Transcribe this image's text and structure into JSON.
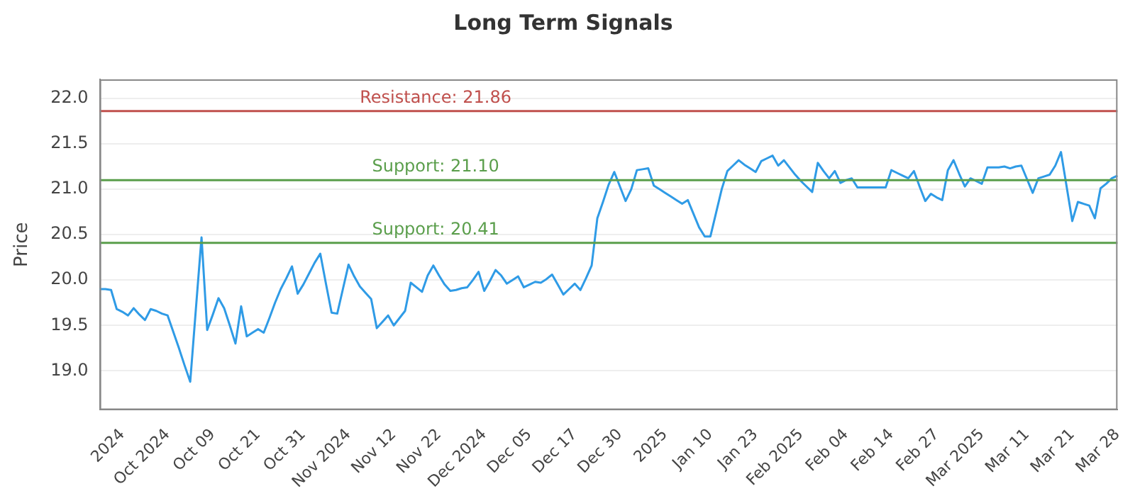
{
  "chart_data": {
    "type": "line",
    "title": "Long Term Signals",
    "ylabel": "Price",
    "categories": [
      null,
      null,
      null,
      null,
      "2024",
      null,
      null,
      null,
      null,
      null,
      null,
      null,
      "Oct 2024",
      null,
      null,
      null,
      null,
      null,
      null,
      null,
      "Oct 09",
      null,
      null,
      null,
      null,
      null,
      null,
      null,
      "Oct 21",
      null,
      null,
      null,
      null,
      null,
      null,
      null,
      "Oct 31",
      null,
      null,
      null,
      null,
      null,
      null,
      null,
      "Nov 2024",
      null,
      null,
      null,
      null,
      null,
      null,
      null,
      "Nov 12",
      null,
      null,
      null,
      null,
      null,
      null,
      null,
      "Nov 22",
      null,
      null,
      null,
      null,
      null,
      null,
      null,
      "Dec 2024",
      null,
      null,
      null,
      null,
      null,
      null,
      null,
      "Dec 05",
      null,
      null,
      null,
      null,
      null,
      null,
      null,
      "Dec 17",
      null,
      null,
      null,
      null,
      null,
      null,
      null,
      "Dec 30",
      null,
      null,
      null,
      null,
      null,
      null,
      null,
      "2025",
      null,
      null,
      null,
      null,
      null,
      null,
      null,
      "Jan 10",
      null,
      null,
      null,
      null,
      null,
      null,
      null,
      "Jan 23",
      null,
      null,
      null,
      null,
      null,
      null,
      null,
      "Feb 2025",
      null,
      null,
      null,
      null,
      null,
      null,
      null,
      "Feb 04",
      null,
      null,
      null,
      null,
      null,
      null,
      null,
      "Feb 14",
      null,
      null,
      null,
      null,
      null,
      null,
      null,
      "Feb 27",
      null,
      null,
      null,
      null,
      null,
      null,
      null,
      "Mar 2025",
      null,
      null,
      null,
      null,
      null,
      null,
      null,
      "Mar 11",
      null,
      null,
      null,
      null,
      null,
      null,
      null,
      "Mar 21",
      null,
      null,
      null,
      null,
      null,
      null,
      null,
      "Mar 28"
    ],
    "series": [
      {
        "color": "#2f9be6",
        "values": [
          19.9,
          19.9,
          19.89,
          19.68,
          19.65,
          19.61,
          19.69,
          19.62,
          19.56,
          19.68,
          19.66,
          19.63,
          19.61,
          19.43,
          19.25,
          19.06,
          18.88,
          19.68,
          20.47,
          19.45,
          19.62,
          19.8,
          19.69,
          19.5,
          19.3,
          19.71,
          19.38,
          19.42,
          19.46,
          19.42,
          19.58,
          19.75,
          19.9,
          20.02,
          20.15,
          19.85,
          19.95,
          20.07,
          20.19,
          20.29,
          19.96,
          19.64,
          19.63,
          19.9,
          20.17,
          20.04,
          19.93,
          19.86,
          19.79,
          19.47,
          19.54,
          19.61,
          19.5,
          19.58,
          19.66,
          19.97,
          19.92,
          19.87,
          20.05,
          20.16,
          20.05,
          19.95,
          19.88,
          19.89,
          19.91,
          19.92,
          20.0,
          20.09,
          19.88,
          19.99,
          20.11,
          20.05,
          19.96,
          20.0,
          20.04,
          19.92,
          19.95,
          19.98,
          19.97,
          20.01,
          20.06,
          19.95,
          19.84,
          19.9,
          19.96,
          19.89,
          20.02,
          20.16,
          20.68,
          20.86,
          21.05,
          21.19,
          21.03,
          20.87,
          21.0,
          21.21,
          21.22,
          21.23,
          21.04,
          21.0,
          20.96,
          20.92,
          20.88,
          20.84,
          20.88,
          20.73,
          20.58,
          20.48,
          20.48,
          20.74,
          21.0,
          21.2,
          21.26,
          21.32,
          21.27,
          21.23,
          21.19,
          21.31,
          21.34,
          21.37,
          21.26,
          21.32,
          21.24,
          21.16,
          21.09,
          21.03,
          20.97,
          21.29,
          21.2,
          21.12,
          21.2,
          21.07,
          21.1,
          21.12,
          21.02,
          21.02,
          21.02,
          21.02,
          21.02,
          21.02,
          21.21,
          21.18,
          21.15,
          21.12,
          21.2,
          21.03,
          20.87,
          20.95,
          20.91,
          20.88,
          21.21,
          21.32,
          21.17,
          21.03,
          21.12,
          21.09,
          21.06,
          21.24,
          21.24,
          21.24,
          21.25,
          21.23,
          21.25,
          21.26,
          21.11,
          20.96,
          21.12,
          21.14,
          21.16,
          21.26,
          21.41,
          21.03,
          20.65,
          20.86,
          20.84,
          20.82,
          20.68,
          21.01,
          21.06,
          21.12,
          21.15
        ]
      }
    ],
    "ylim": [
      18.57,
      22.21
    ],
    "yticks": [
      {
        "value": 19,
        "label": "19.0"
      },
      {
        "value": 19.5,
        "label": "19.5"
      },
      {
        "value": 20,
        "label": "20.0"
      },
      {
        "value": 20.5,
        "label": "20.5"
      },
      {
        "value": 21,
        "label": "21.0"
      },
      {
        "value": 21.5,
        "label": "21.5"
      },
      {
        "value": 22,
        "label": "22.0"
      }
    ],
    "ref_lines": [
      {
        "axis": "y",
        "value": 21.86,
        "label": "Resistance: 21.86",
        "color": "#c0504d"
      },
      {
        "axis": "y",
        "value": 21.1,
        "label": "Support: 21.10",
        "color": "#5a9e4b"
      },
      {
        "axis": "y",
        "value": 20.41,
        "label": "Support: 20.41",
        "color": "#5a9e4b"
      }
    ],
    "grid": "y",
    "legend": false,
    "marker": "none",
    "line_style": "solid"
  }
}
